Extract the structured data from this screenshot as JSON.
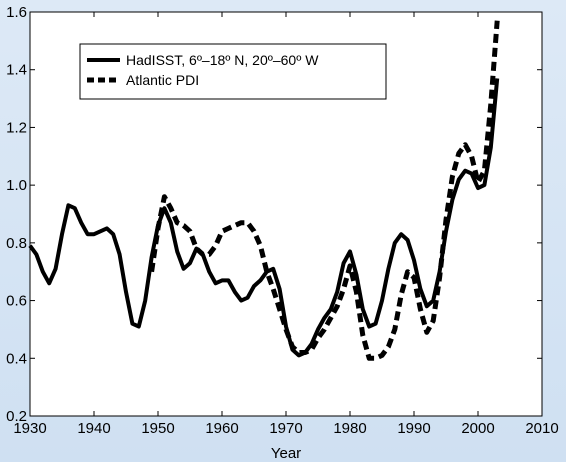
{
  "chart_data": {
    "type": "line",
    "title": "",
    "xlabel": "Year",
    "ylabel": "",
    "xlim": [
      1930,
      2010
    ],
    "ylim": [
      0.2,
      1.6
    ],
    "xticks": [
      1930,
      1940,
      1950,
      1960,
      1970,
      1980,
      1990,
      2000,
      2010
    ],
    "yticks": [
      0.2,
      0.4,
      0.6,
      0.8,
      1.0,
      1.2,
      1.4,
      1.6
    ],
    "ytick_labels": [
      "0.2",
      "0.4",
      "0.6",
      "0.8",
      "1.0",
      "1.2",
      "1.4",
      "1.6"
    ],
    "grid": false,
    "legend_position": "top-left",
    "series": [
      {
        "name": "HadISST, 6º–18º N, 20º–60º W",
        "style": "solid",
        "color": "#000000",
        "x": [
          1930,
          1931,
          1932,
          1933,
          1934,
          1935,
          1936,
          1937,
          1938,
          1939,
          1940,
          1941,
          1942,
          1943,
          1944,
          1945,
          1946,
          1947,
          1948,
          1949,
          1950,
          1951,
          1952,
          1953,
          1954,
          1955,
          1956,
          1957,
          1958,
          1959,
          1960,
          1961,
          1962,
          1963,
          1964,
          1965,
          1966,
          1967,
          1968,
          1969,
          1970,
          1971,
          1972,
          1973,
          1974,
          1975,
          1976,
          1977,
          1978,
          1979,
          1980,
          1981,
          1982,
          1983,
          1984,
          1985,
          1986,
          1987,
          1988,
          1989,
          1990,
          1991,
          1992,
          1993,
          1994,
          1995,
          1996,
          1997,
          1998,
          1999,
          2000,
          2001,
          2002,
          2003
        ],
        "values": [
          0.79,
          0.76,
          0.7,
          0.66,
          0.71,
          0.83,
          0.93,
          0.92,
          0.87,
          0.83,
          0.83,
          0.84,
          0.85,
          0.83,
          0.76,
          0.63,
          0.52,
          0.51,
          0.6,
          0.75,
          0.86,
          0.92,
          0.87,
          0.77,
          0.71,
          0.73,
          0.78,
          0.76,
          0.7,
          0.66,
          0.67,
          0.67,
          0.63,
          0.6,
          0.61,
          0.65,
          0.67,
          0.7,
          0.71,
          0.64,
          0.51,
          0.43,
          0.41,
          0.42,
          0.45,
          0.5,
          0.54,
          0.57,
          0.63,
          0.73,
          0.77,
          0.69,
          0.57,
          0.51,
          0.52,
          0.6,
          0.71,
          0.8,
          0.83,
          0.81,
          0.74,
          0.64,
          0.58,
          0.6,
          0.7,
          0.84,
          0.95,
          1.02,
          1.05,
          1.04,
          0.99,
          1.0,
          1.13,
          1.37
        ]
      },
      {
        "name": "Atlantic PDI",
        "style": "dashed",
        "color": "#000000",
        "x": [
          1949,
          1950,
          1951,
          1952,
          1953,
          1954,
          1955,
          1956,
          1957,
          1958,
          1959,
          1960,
          1961,
          1962,
          1963,
          1964,
          1965,
          1966,
          1967,
          1968,
          1969,
          1970,
          1971,
          1972,
          1973,
          1974,
          1975,
          1976,
          1977,
          1978,
          1979,
          1980,
          1981,
          1982,
          1983,
          1984,
          1985,
          1986,
          1987,
          1988,
          1989,
          1990,
          1991,
          1992,
          1993,
          1994,
          1995,
          1996,
          1997,
          1998,
          1999,
          2000,
          2001,
          2002,
          2003
        ],
        "values": [
          0.7,
          0.85,
          0.96,
          0.92,
          0.87,
          0.86,
          0.84,
          0.78,
          0.76,
          0.76,
          0.79,
          0.84,
          0.85,
          0.86,
          0.87,
          0.87,
          0.84,
          0.79,
          0.7,
          0.64,
          0.57,
          0.5,
          0.44,
          0.42,
          0.42,
          0.43,
          0.47,
          0.5,
          0.54,
          0.58,
          0.64,
          0.72,
          0.63,
          0.48,
          0.4,
          0.4,
          0.41,
          0.44,
          0.5,
          0.62,
          0.7,
          0.68,
          0.57,
          0.49,
          0.53,
          0.68,
          0.88,
          1.03,
          1.11,
          1.14,
          1.1,
          1.01,
          1.05,
          1.28,
          1.57
        ]
      }
    ]
  }
}
